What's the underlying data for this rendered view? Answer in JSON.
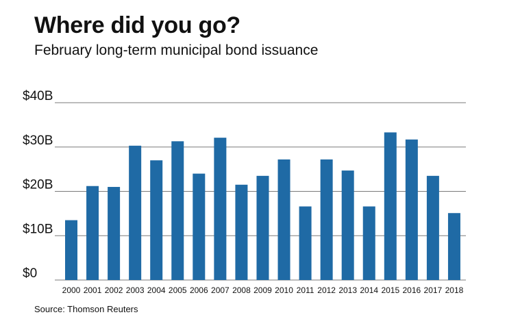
{
  "title": "Where did you go?",
  "subtitle": "February long-term municipal bond issuance",
  "source": "Source: Thomson Reuters",
  "colors": {
    "bar": "#1f6aa5",
    "grid": "#7a7a7a",
    "text": "#111111"
  },
  "chart_data": {
    "type": "bar",
    "title": "Where did you go?",
    "subtitle": "February long-term municipal bond issuance",
    "xlabel": "",
    "ylabel": "",
    "ylim": [
      0,
      40
    ],
    "yticks": [
      0,
      10,
      20,
      30,
      40
    ],
    "ytick_labels": [
      "$0",
      "$10B",
      "$20B",
      "$30B",
      "$40B"
    ],
    "grid": true,
    "categories": [
      "2000",
      "2001",
      "2002",
      "2003",
      "2004",
      "2005",
      "2006",
      "2007",
      "2008",
      "2009",
      "2010",
      "2011",
      "2012",
      "2013",
      "2014",
      "2015",
      "2016",
      "2017",
      "2018"
    ],
    "values": [
      13.5,
      21.2,
      21.0,
      30.3,
      27.0,
      31.3,
      24.0,
      32.1,
      21.5,
      23.5,
      27.2,
      16.6,
      27.2,
      24.7,
      16.6,
      33.3,
      31.7,
      23.5,
      15.1
    ]
  }
}
